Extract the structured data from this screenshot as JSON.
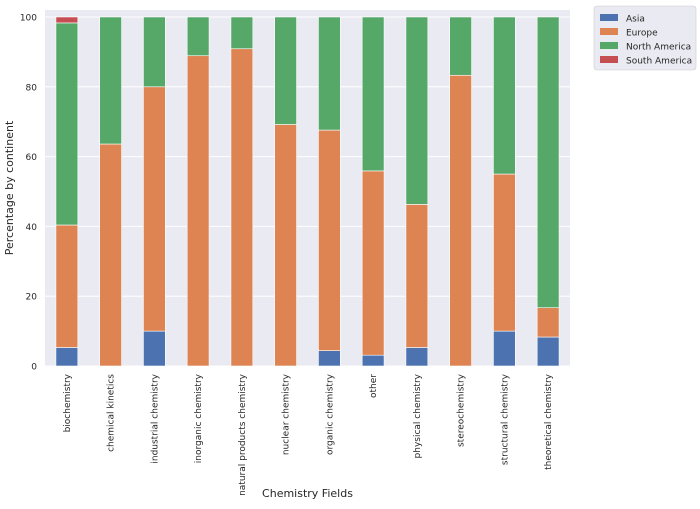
{
  "chart_data": {
    "type": "bar",
    "stacked": true,
    "title": "",
    "xlabel": "Chemistry Fields",
    "ylabel": "Percentage by continent",
    "ylim": [
      0,
      100
    ],
    "yticks": [
      0,
      20,
      40,
      60,
      80,
      100
    ],
    "grid": true,
    "legend_position": "outside-right-top",
    "categories": [
      "biochemistry",
      "chemical kinetics",
      "industrial chemistry",
      "inorganic chemistry",
      "natural products chemistry",
      "nuclear chemistry",
      "organic chemistry",
      "other",
      "physical chemistry",
      "stereochemistry",
      "structural chemistry",
      "theoretical chemistry"
    ],
    "series": [
      {
        "name": "Asia",
        "color": "#4c72b0",
        "values": [
          5.3,
          0,
          10,
          0,
          0,
          0,
          4.4,
          3.1,
          5.3,
          0,
          10,
          8.3
        ]
      },
      {
        "name": "Europe",
        "color": "#dd8452",
        "values": [
          35.1,
          63.6,
          70,
          88.9,
          90.9,
          69.2,
          63.2,
          52.8,
          41,
          83.3,
          45,
          8.4
        ]
      },
      {
        "name": "North America",
        "color": "#55a868",
        "values": [
          57.9,
          36.4,
          20,
          11.1,
          9.1,
          30.8,
          32.4,
          44.1,
          53.7,
          16.7,
          45,
          83.3
        ]
      },
      {
        "name": "South America",
        "color": "#c44e52",
        "values": [
          1.7,
          0,
          0,
          0,
          0,
          0,
          0,
          0,
          0,
          0,
          0,
          0
        ]
      }
    ],
    "colors": {
      "plot_background": "#eaeaf2",
      "grid": "#ffffff"
    }
  }
}
